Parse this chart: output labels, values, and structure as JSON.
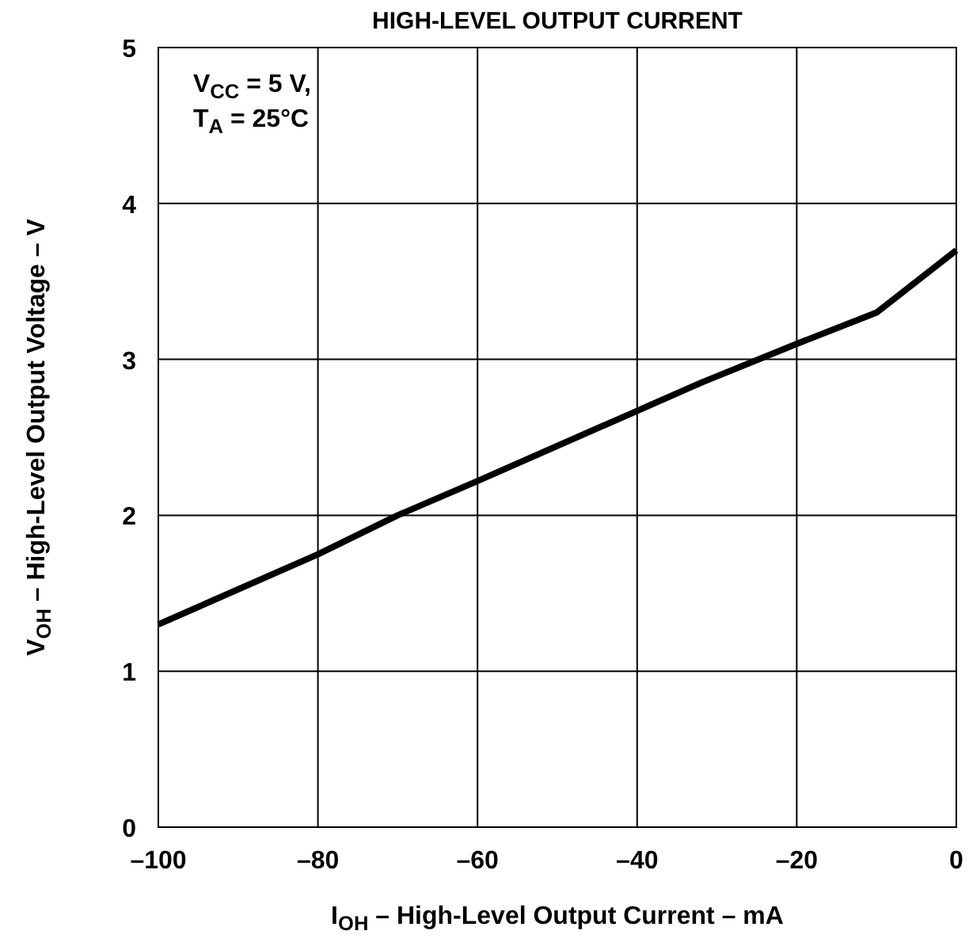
{
  "chart_data": {
    "type": "line",
    "title": "HIGH-LEVEL OUTPUT CURRENT",
    "xlabel": "I$_{OH}$ – High-Level Output Current – mA",
    "ylabel": "V$_{OH}$ – High-Level Output Voltage – V",
    "annotations": [
      "V$_{CC}$ = 5 V,",
      "T$_{A}$ = 25°C"
    ],
    "x": [
      -100,
      -80,
      -70,
      -60,
      -40,
      -32,
      -20,
      -10,
      0
    ],
    "series": [
      {
        "color": "#000000",
        "values": [
          1.3,
          1.75,
          2.0,
          2.22,
          2.67,
          2.85,
          3.1,
          3.3,
          3.7
        ]
      }
    ],
    "xlim": [
      -100,
      0
    ],
    "ylim": [
      0,
      5
    ],
    "xticks": [
      {
        "value": -100,
        "label": "–100"
      },
      {
        "value": -80,
        "label": "–80"
      },
      {
        "value": -60,
        "label": "–60"
      },
      {
        "value": -40,
        "label": "–40"
      },
      {
        "value": -20,
        "label": "–20"
      },
      0
    ],
    "yticks": [
      0,
      1,
      2,
      3,
      4,
      5
    ],
    "grid": true,
    "marker": "none",
    "line_style": "solid"
  }
}
